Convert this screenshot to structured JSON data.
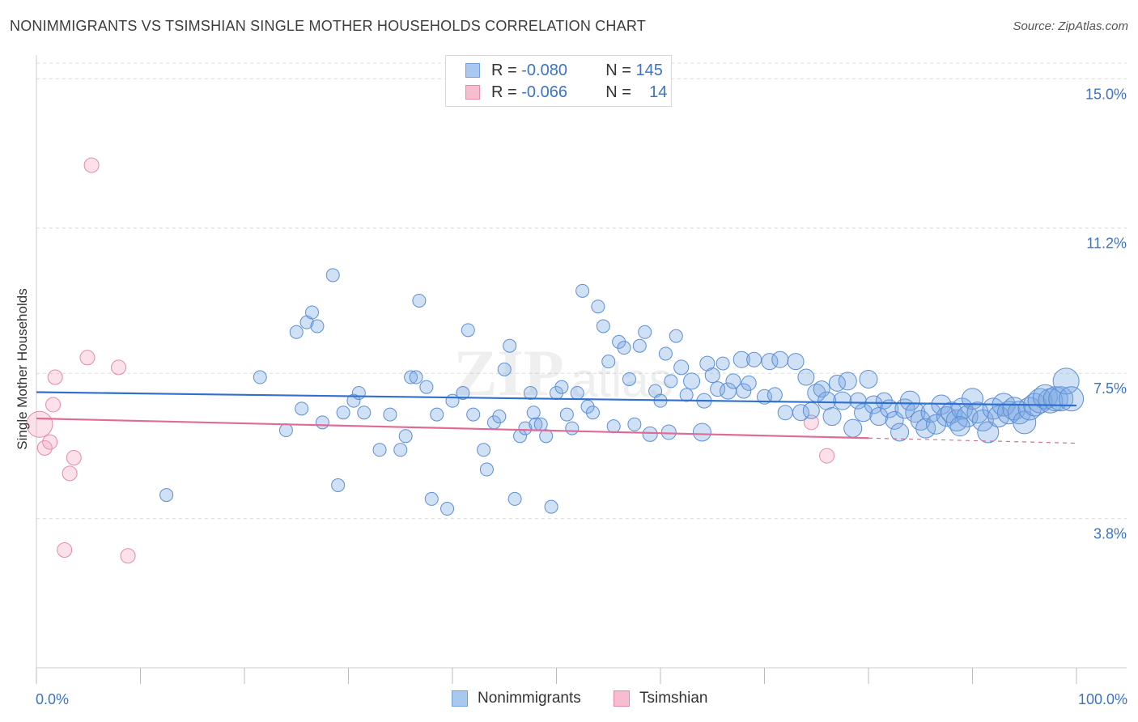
{
  "header": {
    "title": "NONIMMIGRANTS VS TSIMSHIAN SINGLE MOTHER HOUSEHOLDS CORRELATION CHART",
    "source": "Source: ZipAtlas.com"
  },
  "legend": {
    "rows": [
      {
        "r_label": "R =",
        "r_value": "-0.080",
        "n_label": "N =",
        "n_value": "145",
        "color": "#a9c8f0",
        "border": "#6f9fdc"
      },
      {
        "r_label": "R =",
        "r_value": "-0.066",
        "n_label": "N =",
        "n_value": "14",
        "color": "#f7bccd",
        "border": "#e68aa6"
      }
    ]
  },
  "bottom_legend": {
    "items": [
      {
        "label": "Nonimmigrants",
        "color": "#a9c8f0",
        "border": "#6f9fdc"
      },
      {
        "label": "Tsimshian",
        "color": "#f7bccd",
        "border": "#e68aa6"
      }
    ]
  },
  "colors": {
    "blue_fill": "rgba(120,165,225,0.35)",
    "blue_stroke": "#5b8fd6",
    "blue_line": "#2f6fd0",
    "pink_fill": "rgba(245,170,195,0.35)",
    "pink_stroke": "#e58aa9",
    "pink_line": "#e06b96",
    "tick_label": "#3b73c9",
    "grid": "#dcdcdc"
  },
  "chart_data": {
    "type": "scatter",
    "title": "NONIMMIGRANTS VS TSIMSHIAN SINGLE MOTHER HOUSEHOLDS CORRELATION CHART",
    "xlabel": "",
    "ylabel": "Single Mother Households",
    "xlim": [
      0,
      100
    ],
    "ylim": [
      0.0,
      15.4
    ],
    "x_tick_labels": [
      "0.0%",
      "100.0%"
    ],
    "y_ticks": [
      3.8,
      7.5,
      11.2,
      15.0
    ],
    "y_tick_labels": [
      "3.8%",
      "7.5%",
      "11.2%",
      "15.0%"
    ],
    "grid": "horizontal dashed",
    "series": [
      {
        "name": "Nonimmigrants",
        "trend": {
          "x": [
            0,
            100
          ],
          "y": [
            7.02,
            6.68
          ]
        },
        "points": [
          [
            12.5,
            4.4,
            8
          ],
          [
            21.5,
            7.4,
            8
          ],
          [
            24.0,
            6.05,
            8
          ],
          [
            25.0,
            8.55,
            8
          ],
          [
            25.5,
            6.6,
            8
          ],
          [
            26.0,
            8.8,
            8
          ],
          [
            26.5,
            9.05,
            8
          ],
          [
            27.0,
            8.7,
            8
          ],
          [
            27.5,
            6.25,
            8
          ],
          [
            28.5,
            10.0,
            8
          ],
          [
            29.0,
            4.65,
            8
          ],
          [
            29.5,
            6.5,
            8
          ],
          [
            30.5,
            6.8,
            8
          ],
          [
            31.0,
            7.0,
            8
          ],
          [
            31.5,
            6.5,
            8
          ],
          [
            33.0,
            5.55,
            8
          ],
          [
            34.0,
            6.45,
            8
          ],
          [
            35.0,
            5.55,
            8
          ],
          [
            35.5,
            5.9,
            8
          ],
          [
            36.0,
            7.4,
            8
          ],
          [
            36.5,
            7.4,
            8
          ],
          [
            36.8,
            9.35,
            8
          ],
          [
            37.5,
            7.15,
            8
          ],
          [
            38.0,
            4.3,
            8
          ],
          [
            38.5,
            6.45,
            8
          ],
          [
            39.5,
            4.05,
            8
          ],
          [
            40.0,
            6.8,
            8
          ],
          [
            41.0,
            7.0,
            8
          ],
          [
            41.5,
            8.6,
            8
          ],
          [
            42.0,
            6.45,
            8
          ],
          [
            43.0,
            5.55,
            8
          ],
          [
            43.3,
            5.05,
            8
          ],
          [
            44.0,
            6.25,
            8
          ],
          [
            44.5,
            6.4,
            8
          ],
          [
            45.0,
            7.6,
            8
          ],
          [
            45.5,
            8.2,
            8
          ],
          [
            46.0,
            4.3,
            8
          ],
          [
            46.5,
            5.9,
            8
          ],
          [
            47.0,
            6.1,
            8
          ],
          [
            47.5,
            7.0,
            8
          ],
          [
            47.8,
            6.5,
            8
          ],
          [
            48.0,
            6.2,
            8
          ],
          [
            48.5,
            6.2,
            8
          ],
          [
            49.0,
            5.9,
            8
          ],
          [
            49.5,
            4.1,
            8
          ],
          [
            50.0,
            7.0,
            8
          ],
          [
            50.5,
            7.15,
            8
          ],
          [
            51.0,
            6.45,
            8
          ],
          [
            51.5,
            6.1,
            8
          ],
          [
            52.0,
            7.0,
            8
          ],
          [
            52.5,
            9.6,
            8
          ],
          [
            53.0,
            6.65,
            8
          ],
          [
            53.5,
            6.5,
            8
          ],
          [
            54.0,
            9.2,
            8
          ],
          [
            54.5,
            8.7,
            8
          ],
          [
            55.0,
            7.8,
            8
          ],
          [
            55.5,
            6.15,
            8
          ],
          [
            56.0,
            8.3,
            8
          ],
          [
            56.5,
            8.15,
            8
          ],
          [
            57.0,
            7.35,
            8
          ],
          [
            57.5,
            6.2,
            8
          ],
          [
            58.0,
            8.2,
            8
          ],
          [
            58.5,
            8.55,
            8
          ],
          [
            59.0,
            5.95,
            9
          ],
          [
            59.5,
            7.05,
            8
          ],
          [
            60.0,
            6.8,
            8
          ],
          [
            60.5,
            8.0,
            8
          ],
          [
            61.0,
            7.3,
            8
          ],
          [
            61.5,
            8.45,
            8
          ],
          [
            62.0,
            7.65,
            9
          ],
          [
            62.5,
            6.95,
            8
          ],
          [
            63.0,
            7.3,
            10
          ],
          [
            64.0,
            6.0,
            11
          ],
          [
            64.5,
            7.75,
            9
          ],
          [
            65.0,
            7.45,
            9
          ],
          [
            65.5,
            7.1,
            9
          ],
          [
            66.0,
            7.75,
            8
          ],
          [
            66.5,
            7.05,
            10
          ],
          [
            67.0,
            7.3,
            9
          ],
          [
            67.8,
            7.85,
            10
          ],
          [
            68.0,
            7.05,
            9
          ],
          [
            68.5,
            7.25,
            9
          ],
          [
            69.0,
            7.85,
            9
          ],
          [
            70.0,
            6.9,
            9
          ],
          [
            70.5,
            7.8,
            10
          ],
          [
            71.0,
            6.95,
            9
          ],
          [
            71.5,
            7.85,
            10
          ],
          [
            72.0,
            6.5,
            9
          ],
          [
            73.0,
            7.8,
            10
          ],
          [
            73.5,
            6.5,
            10
          ],
          [
            74.0,
            7.4,
            10
          ],
          [
            74.5,
            6.55,
            10
          ],
          [
            75.0,
            7.0,
            11
          ],
          [
            75.5,
            7.1,
            10
          ],
          [
            76.0,
            6.8,
            11
          ],
          [
            76.5,
            6.4,
            11
          ],
          [
            77.0,
            7.25,
            10
          ],
          [
            77.5,
            6.8,
            11
          ],
          [
            78.0,
            7.3,
            11
          ],
          [
            78.5,
            6.1,
            11
          ],
          [
            79.0,
            6.8,
            10
          ],
          [
            79.5,
            6.5,
            11
          ],
          [
            80.0,
            7.35,
            11
          ],
          [
            80.5,
            6.7,
            11
          ],
          [
            81.0,
            6.4,
            11
          ],
          [
            81.5,
            6.8,
            10
          ],
          [
            82.0,
            6.6,
            11
          ],
          [
            82.5,
            6.3,
            11
          ],
          [
            83.0,
            6.0,
            11
          ],
          [
            83.5,
            6.6,
            12
          ],
          [
            84.0,
            6.8,
            12
          ],
          [
            84.5,
            6.5,
            12
          ],
          [
            85.0,
            6.3,
            12
          ],
          [
            85.5,
            6.1,
            12
          ],
          [
            86.0,
            6.5,
            12
          ],
          [
            86.5,
            6.2,
            12
          ],
          [
            87.0,
            6.7,
            12
          ],
          [
            87.5,
            6.4,
            12
          ],
          [
            88.0,
            6.5,
            13
          ],
          [
            88.5,
            6.3,
            13
          ],
          [
            89.0,
            6.6,
            13
          ],
          [
            89.5,
            6.4,
            13
          ],
          [
            90.0,
            6.85,
            13
          ],
          [
            90.5,
            6.5,
            13
          ],
          [
            91.0,
            6.3,
            13
          ],
          [
            91.5,
            6.0,
            13
          ],
          [
            92.0,
            6.6,
            13
          ],
          [
            92.5,
            6.4,
            13
          ],
          [
            93.0,
            6.7,
            14
          ],
          [
            93.5,
            6.5,
            14
          ],
          [
            94.0,
            6.6,
            14
          ],
          [
            94.5,
            6.5,
            14
          ],
          [
            95.0,
            6.25,
            14
          ],
          [
            95.5,
            6.6,
            14
          ],
          [
            96.0,
            6.7,
            14
          ],
          [
            96.5,
            6.8,
            15
          ],
          [
            97.0,
            6.9,
            15
          ],
          [
            97.5,
            6.8,
            15
          ],
          [
            98.0,
            6.85,
            15
          ],
          [
            98.5,
            6.85,
            15
          ],
          [
            99.0,
            7.3,
            16
          ],
          [
            99.5,
            6.85,
            15
          ],
          [
            64.2,
            6.8,
            9
          ],
          [
            60.8,
            6.0,
            9
          ],
          [
            88.8,
            6.15,
            12
          ]
        ]
      },
      {
        "name": "Tsimshian",
        "trend": {
          "x": [
            0,
            80
          ],
          "y": [
            6.35,
            5.85
          ],
          "dashed_to": [
            100,
            5.72
          ]
        },
        "points": [
          [
            0.3,
            6.2,
            16
          ],
          [
            0.8,
            5.6,
            9
          ],
          [
            1.3,
            5.75,
            9
          ],
          [
            1.6,
            6.7,
            9
          ],
          [
            1.8,
            7.4,
            9
          ],
          [
            2.7,
            3.0,
            9
          ],
          [
            3.2,
            4.95,
            9
          ],
          [
            3.6,
            5.35,
            9
          ],
          [
            4.9,
            7.9,
            9
          ],
          [
            5.3,
            12.8,
            9
          ],
          [
            7.9,
            7.65,
            9
          ],
          [
            8.8,
            2.85,
            9
          ],
          [
            74.5,
            6.25,
            9
          ],
          [
            76.0,
            5.4,
            9
          ]
        ]
      }
    ]
  }
}
